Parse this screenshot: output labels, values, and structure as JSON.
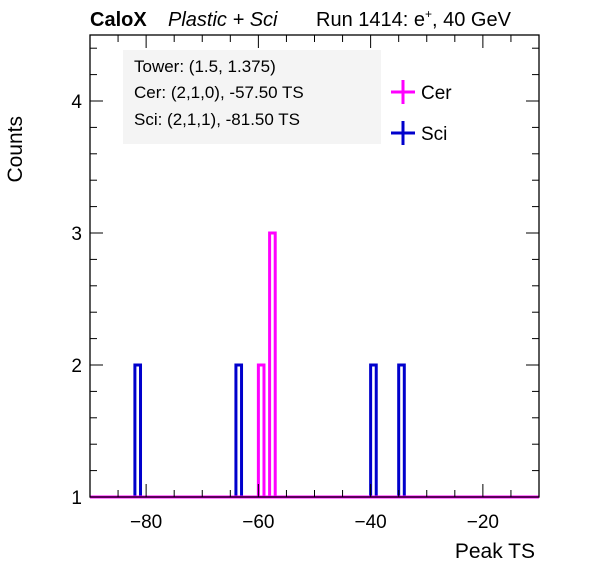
{
  "header": {
    "experiment": "CaloX",
    "config": "Plastic + Sci",
    "run": "Run 1414: e",
    "run_sup": "+",
    "run_tail": ", 40 GeV"
  },
  "info": {
    "line1": "Tower: (1.5, 1.375)",
    "line2": "Cer: (2,1,0), -57.50 TS",
    "line3": "Sci: (2,1,1), -81.50 TS"
  },
  "chart_data": {
    "type": "histogram",
    "xlabel": "Peak TS",
    "ylabel": "Counts",
    "xlim": [
      -90,
      -10
    ],
    "ylim": [
      1,
      4.5
    ],
    "xticks": [
      -80,
      -60,
      -40,
      -20
    ],
    "xtick_labels": [
      "−80",
      "−60",
      "−40",
      "−20"
    ],
    "yticks": [
      1,
      2,
      3,
      4
    ],
    "ytick_labels": [
      "1",
      "2",
      "3",
      "4"
    ],
    "bin_width": 1,
    "baseline": 1,
    "legend_position": "top-right",
    "series": [
      {
        "name": "Sci",
        "color": "#0000cc",
        "bins": [
          {
            "x0": -82,
            "x1": -81,
            "value": 2
          },
          {
            "x0": -64,
            "x1": -63,
            "value": 2
          },
          {
            "x0": -40,
            "x1": -39,
            "value": 2
          },
          {
            "x0": -35,
            "x1": -34,
            "value": 2
          }
        ]
      },
      {
        "name": "Cer",
        "color": "#ff00ff",
        "bins": [
          {
            "x0": -60,
            "x1": -59,
            "value": 2
          },
          {
            "x0": -58,
            "x1": -57,
            "value": 3
          }
        ]
      }
    ]
  }
}
